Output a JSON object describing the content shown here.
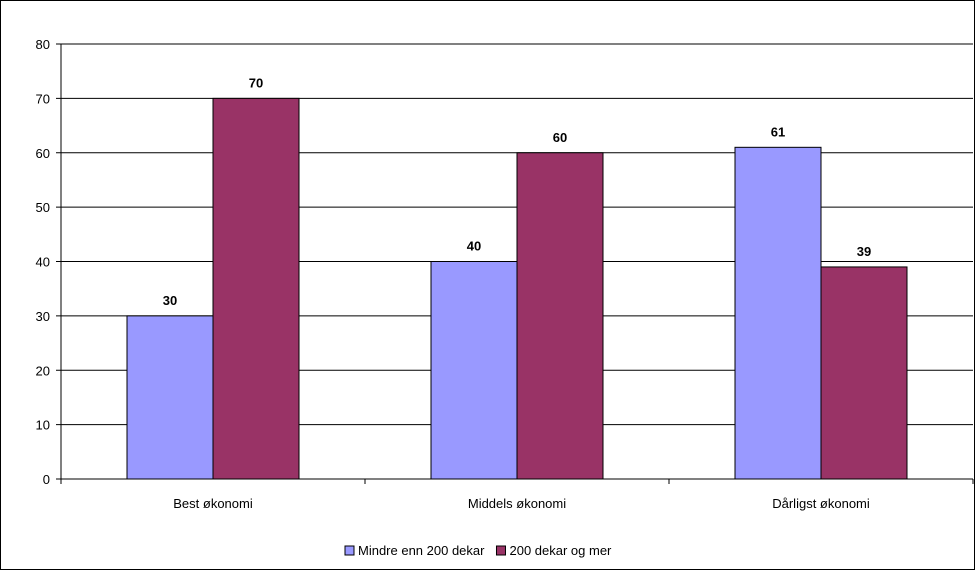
{
  "chart_data": {
    "type": "bar",
    "categories": [
      "Best økonomi",
      "Middels økonomi",
      "Dårligst økonomi"
    ],
    "series": [
      {
        "name": "Mindre enn 200 dekar",
        "values": [
          30,
          40,
          61
        ],
        "color": "#9999FF"
      },
      {
        "name": "200 dekar og mer",
        "values": [
          70,
          60,
          39
        ],
        "color": "#993366"
      }
    ],
    "ylim": [
      0,
      80
    ],
    "yticks": [
      0,
      10,
      20,
      30,
      40,
      50,
      60,
      70,
      80
    ],
    "grid": true,
    "data_labels": true,
    "legend_position": "bottom"
  }
}
